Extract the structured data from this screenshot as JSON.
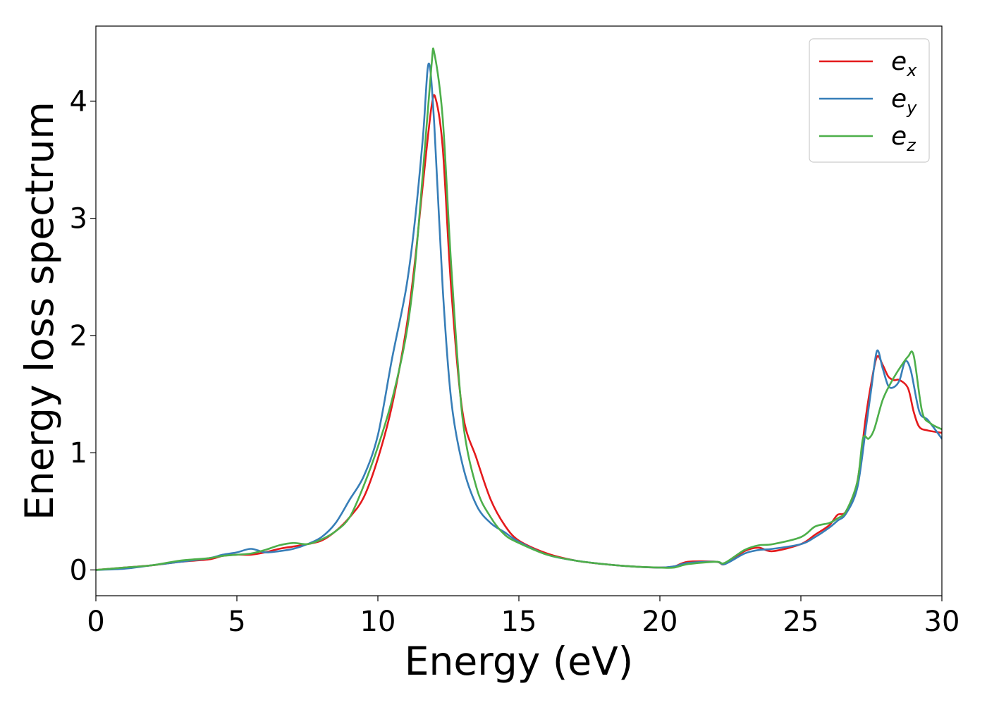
{
  "chart_data": {
    "type": "line",
    "title": "",
    "xlabel": "Energy (eV)",
    "ylabel": "Energy loss spectrum",
    "xlim": [
      0,
      30
    ],
    "ylim": [
      -0.22,
      4.64
    ],
    "xticks": [
      0,
      5,
      10,
      15,
      20,
      25,
      30
    ],
    "yticks": [
      0,
      1,
      2,
      3,
      4
    ],
    "grid": false,
    "legend_position": "top-right",
    "series": [
      {
        "name": "e_x",
        "base": "e",
        "sub": "x",
        "color": "#e41a1c",
        "x": [
          0,
          1,
          2,
          3,
          4,
          4.5,
          5,
          5.5,
          6,
          6.5,
          7,
          7.5,
          8,
          8.5,
          9,
          9.5,
          10,
          10.5,
          11,
          11.3,
          11.6,
          11.9,
          12.05,
          12.3,
          12.6,
          13,
          13.5,
          14,
          14.5,
          15,
          16,
          17,
          18,
          19,
          20,
          20.5,
          21,
          22,
          22.3,
          23,
          23.5,
          24,
          25,
          25.5,
          26,
          26.3,
          26.6,
          27,
          27.3,
          27.5,
          27.7,
          27.9,
          28.1,
          28.3,
          28.5,
          28.8,
          29,
          29.2,
          29.5,
          30
        ],
        "y": [
          0.0,
          0.02,
          0.04,
          0.07,
          0.09,
          0.12,
          0.13,
          0.13,
          0.15,
          0.18,
          0.2,
          0.22,
          0.25,
          0.33,
          0.45,
          0.62,
          0.95,
          1.4,
          2.05,
          2.6,
          3.3,
          3.95,
          4.02,
          3.6,
          2.4,
          1.35,
          0.95,
          0.6,
          0.38,
          0.25,
          0.14,
          0.08,
          0.05,
          0.03,
          0.02,
          0.03,
          0.07,
          0.07,
          0.05,
          0.16,
          0.19,
          0.16,
          0.22,
          0.3,
          0.38,
          0.47,
          0.5,
          0.75,
          1.3,
          1.6,
          1.82,
          1.75,
          1.65,
          1.62,
          1.62,
          1.55,
          1.35,
          1.22,
          1.19,
          1.17
        ]
      },
      {
        "name": "e_y",
        "base": "e",
        "sub": "y",
        "color": "#377eb8",
        "x": [
          0,
          1,
          2,
          3,
          4,
          4.5,
          5,
          5.5,
          6,
          6.5,
          7,
          7.5,
          8,
          8.5,
          9,
          9.5,
          10,
          10.5,
          11,
          11.3,
          11.6,
          11.8,
          12.0,
          12.3,
          12.6,
          13,
          13.5,
          14,
          14.5,
          15,
          16,
          17,
          18,
          19,
          20,
          20.5,
          21,
          22,
          22.3,
          23,
          23.5,
          24,
          25,
          25.5,
          26,
          26.3,
          26.6,
          27,
          27.3,
          27.5,
          27.7,
          27.9,
          28.1,
          28.3,
          28.5,
          28.7,
          28.9,
          29.2,
          29.5,
          30
        ],
        "y": [
          0.0,
          0.01,
          0.04,
          0.07,
          0.1,
          0.13,
          0.15,
          0.18,
          0.15,
          0.16,
          0.18,
          0.22,
          0.28,
          0.4,
          0.6,
          0.8,
          1.15,
          1.8,
          2.4,
          2.95,
          3.7,
          4.32,
          3.8,
          2.4,
          1.45,
          0.9,
          0.55,
          0.4,
          0.32,
          0.24,
          0.13,
          0.08,
          0.05,
          0.03,
          0.02,
          0.03,
          0.06,
          0.07,
          0.05,
          0.14,
          0.17,
          0.18,
          0.22,
          0.28,
          0.36,
          0.42,
          0.48,
          0.7,
          1.2,
          1.55,
          1.87,
          1.72,
          1.57,
          1.56,
          1.62,
          1.78,
          1.7,
          1.35,
          1.28,
          1.12
        ]
      },
      {
        "name": "e_z",
        "base": "e",
        "sub": "z",
        "color": "#4daf4a",
        "x": [
          0,
          1,
          2,
          3,
          4,
          4.5,
          5,
          5.5,
          6,
          6.5,
          7,
          7.5,
          8,
          8.5,
          9,
          9.5,
          10,
          10.5,
          11,
          11.3,
          11.6,
          11.9,
          12.0,
          12.3,
          12.6,
          13,
          13.5,
          14,
          14.5,
          15,
          16,
          17,
          18,
          19,
          20,
          20.5,
          21,
          22,
          22.3,
          23,
          23.5,
          24,
          25,
          25.5,
          26,
          26.3,
          26.6,
          27,
          27.2,
          27.4,
          27.6,
          27.9,
          28.2,
          28.5,
          28.8,
          29,
          29.3,
          29.6,
          30
        ],
        "y": [
          0.0,
          0.02,
          0.04,
          0.08,
          0.1,
          0.12,
          0.13,
          0.14,
          0.17,
          0.21,
          0.23,
          0.22,
          0.26,
          0.33,
          0.45,
          0.72,
          1.05,
          1.45,
          2.0,
          2.55,
          3.4,
          4.3,
          4.41,
          3.85,
          2.6,
          1.3,
          0.7,
          0.45,
          0.3,
          0.23,
          0.13,
          0.08,
          0.05,
          0.03,
          0.02,
          0.02,
          0.05,
          0.07,
          0.06,
          0.17,
          0.21,
          0.22,
          0.28,
          0.37,
          0.4,
          0.44,
          0.5,
          0.75,
          1.12,
          1.12,
          1.2,
          1.45,
          1.6,
          1.72,
          1.82,
          1.83,
          1.35,
          1.25,
          1.2
        ]
      }
    ]
  }
}
